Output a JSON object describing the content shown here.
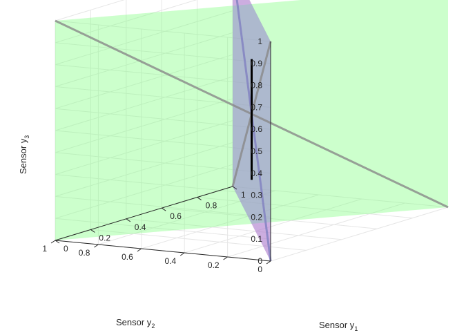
{
  "chart_data": {
    "type": "surface3d",
    "title": "",
    "xlabel": {
      "text": "Sensor y",
      "sub": "1"
    },
    "ylabel": {
      "text": "Sensor y",
      "sub": "2"
    },
    "zlabel": {
      "text": "Sensor y",
      "sub": "3"
    },
    "xlim": [
      0,
      1
    ],
    "ylim": [
      0,
      1
    ],
    "zlim": [
      0,
      1
    ],
    "x_ticks": [
      "0",
      "0.2",
      "0.4",
      "0.6",
      "0.8",
      "1"
    ],
    "y_ticks": [
      "0",
      "0.2",
      "0.4",
      "0.6",
      "0.8",
      "1"
    ],
    "z_ticks": [
      "0",
      "0.1",
      "0.2",
      "0.3",
      "0.4",
      "0.5",
      "0.6",
      "0.7",
      "0.8",
      "0.9",
      "1"
    ],
    "grid": true,
    "planes": [
      {
        "name": "",
        "color": "#ff7f7f",
        "opacity": 0.4,
        "corners": [
          [
            0,
            0,
            0
          ],
          [
            1,
            1,
            0
          ],
          [
            1,
            1,
            1
          ],
          [
            0,
            0,
            1
          ]
        ]
      },
      {
        "name": "",
        "color": "#7fff7f",
        "opacity": 0.4,
        "corners": [
          [
            0,
            1,
            0
          ],
          [
            1,
            0,
            0
          ],
          [
            1,
            0,
            1
          ],
          [
            0,
            1,
            1
          ]
        ]
      },
      {
        "name": "",
        "color": "#7f7fff",
        "opacity": 0.4,
        "corners": [
          [
            1,
            1,
            1
          ],
          [
            0,
            0,
            1
          ],
          [
            0,
            0,
            0
          ],
          [
            1,
            1,
            0
          ]
        ]
      }
    ],
    "edges": [
      {
        "color": "#888888",
        "from": [
          1,
          1,
          0
        ],
        "to": [
          0,
          0,
          1
        ]
      },
      {
        "color": "#888888",
        "from": [
          0,
          1,
          1
        ],
        "to": [
          1,
          0,
          0
        ]
      },
      {
        "color": "#8080c0",
        "from": [
          0,
          0,
          0
        ],
        "to": [
          1,
          1,
          1
        ]
      }
    ],
    "intersection_line": {
      "color": "#000000",
      "from": [
        0.5,
        0.5,
        0.2
      ],
      "to": [
        0.5,
        0.5,
        0.75
      ]
    }
  }
}
